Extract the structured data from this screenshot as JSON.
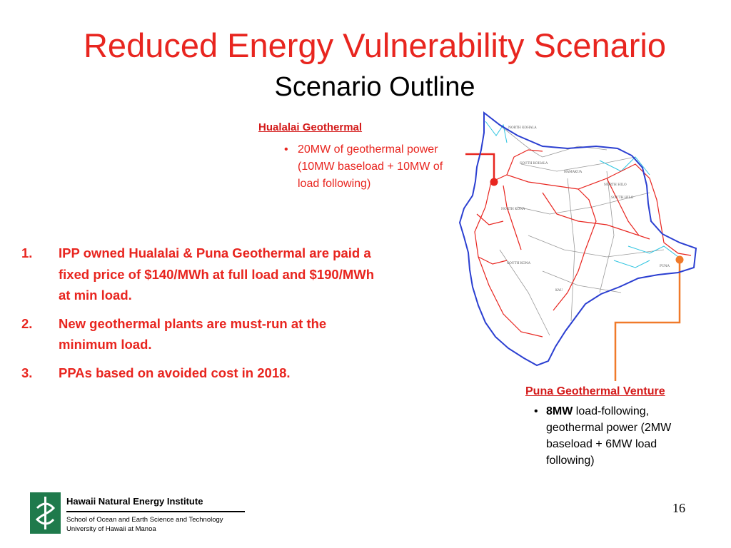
{
  "slide": {
    "title": "Reduced Energy Vulnerability Scenario",
    "subtitle": "Scenario Outline",
    "page_number": "16"
  },
  "hualalai": {
    "heading": "Hualalai Geothermal",
    "bullet_symbol": "•",
    "bullet": "20MW of geothermal power (10MW baseload + 10MW of load following)",
    "marker_color": "#e8251f"
  },
  "scenario_points": [
    {
      "num": "1.",
      "text": "IPP owned Hualalai & Puna Geothermal are paid a fixed price of $140/MWh at full load and $190/MWh at min load."
    },
    {
      "num": "2.",
      "text": "New geothermal plants are must-run at the minimum load."
    },
    {
      "num": "3.",
      "text": "PPAs based on avoided cost in 2018."
    }
  ],
  "puna": {
    "heading": "Puna Geothermal Venture",
    "bullet_symbol": "•",
    "bullet_bold": "8MW",
    "bullet_rest": " load-following, geothermal power (2MW baseload + 6MW load following)",
    "marker_color": "#f07a2a"
  },
  "map": {
    "district_labels": [
      "NORTH KOHALA",
      "SOUTH KOHALA",
      "HAMAKUA",
      "NORTH HILO",
      "SOUTH HILO",
      "NORTH KONA",
      "SOUTH KONA",
      "PUNA",
      "KAU"
    ],
    "colors": {
      "coastline": "#2b3fd1",
      "transmission": "#e8251f",
      "distribution": "#2ec4e0",
      "district_lines": "#9a9a9a"
    }
  },
  "footer": {
    "institute": "Hawaii Natural Energy Institute",
    "school": "School of Ocean and Earth Science and Technology",
    "university": "University of Hawaii at Manoa",
    "logo_color": "#1f7a4c"
  }
}
